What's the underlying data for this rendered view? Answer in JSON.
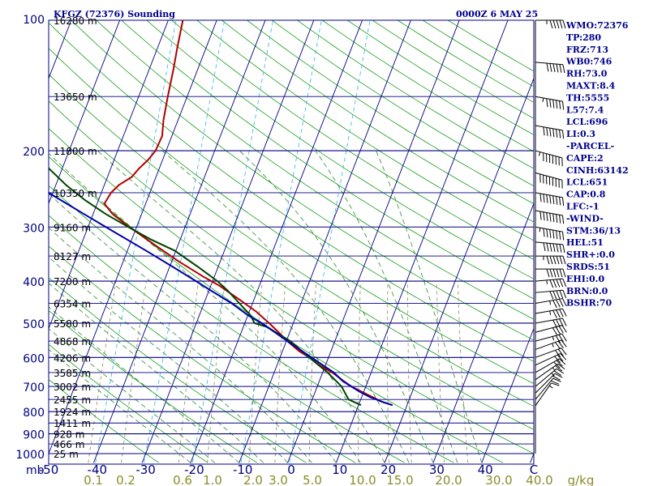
{
  "header": {
    "station": "KFGZ (72376) Sounding",
    "time": "0000Z  6 MAY 25"
  },
  "colors": {
    "isobar": "#000080",
    "isotherm": "#000080",
    "dry_adiabat": "#1a9f1a",
    "moist_adiabat": "#2f8a2f",
    "mixing_ratio": "#8b8b5a",
    "temperature": "#b00000",
    "dewpoint": "#004400",
    "parcel": "#0000aa",
    "ice_line": "#29b6e6",
    "axis_text": "#000080",
    "mixing_text": "#8b8b2a"
  },
  "chart_data": {
    "type": "line",
    "title": "KFGZ (72376) Sounding",
    "diagram": "skew-T log-P",
    "pressure_levels": [
      100,
      200,
      300,
      400,
      500,
      600,
      700,
      800,
      900,
      1000
    ],
    "pressure_tick_labels": [
      "100",
      "200",
      "300",
      "400",
      "500",
      "600",
      "700",
      "800",
      "900",
      "1000"
    ],
    "height_labels": [
      {
        "p": 100,
        "text": "16280 m"
      },
      {
        "p": 150,
        "text": "13650 m"
      },
      {
        "p": 200,
        "text": "11800 m"
      },
      {
        "p": 250,
        "text": "10350 m"
      },
      {
        "p": 300,
        "text": "9160 m"
      },
      {
        "p": 350,
        "text": "8127 m"
      },
      {
        "p": 400,
        "text": "7200 m"
      },
      {
        "p": 450,
        "text": "6354 m"
      },
      {
        "p": 500,
        "text": "5580 m"
      },
      {
        "p": 550,
        "text": "4868 m"
      },
      {
        "p": 600,
        "text": "4206 m"
      },
      {
        "p": 650,
        "text": "3585 m"
      },
      {
        "p": 700,
        "text": "3002 m"
      },
      {
        "p": 750,
        "text": "2455 m"
      },
      {
        "p": 800,
        "text": "1924 m"
      },
      {
        "p": 850,
        "text": "1411 m"
      },
      {
        "p": 900,
        "text": "928 m"
      },
      {
        "p": 950,
        "text": "466 m"
      },
      {
        "p": 1000,
        "text": "25 m"
      }
    ],
    "ylim": [
      100,
      1000
    ],
    "xlim_temperature_c": [
      -50,
      50
    ],
    "temperature_tick_labels": [
      "-50",
      "-40",
      "-30",
      "-20",
      "-10",
      "0",
      "10",
      "20",
      "30",
      "40",
      "C"
    ],
    "y_axis_unit_label": "mb",
    "mixing_ratio_labels": [
      "0.1",
      "0.2",
      "0.6",
      "1.0",
      "2.0",
      "3.0",
      "5.0",
      "10.0",
      "15.0",
      "20.0",
      "30.0",
      "40.0",
      "g/kg"
    ],
    "mixing_ratio_values": [
      0.1,
      0.2,
      0.6,
      1,
      2,
      3,
      5,
      10,
      15,
      20,
      30,
      40
    ],
    "series": [
      {
        "key": "temperature",
        "pressure": [
          773,
          760,
          720,
          700,
          680,
          650,
          630,
          600,
          580,
          550,
          520,
          500,
          470,
          440,
          410,
          390,
          360,
          330,
          300,
          280,
          265,
          250,
          240,
          230,
          220,
          210,
          200,
          185,
          170,
          150,
          130,
          115,
          100
        ],
        "temp_c": [
          17,
          14.6,
          9.6,
          7,
          5,
          2,
          -0.7,
          -4,
          -6.6,
          -9.8,
          -12.8,
          -15,
          -18.6,
          -23.2,
          -28.2,
          -32.4,
          -38.6,
          -44.8,
          -51.5,
          -56,
          -58.5,
          -58,
          -57,
          -55,
          -54.2,
          -53,
          -52.2,
          -52,
          -53,
          -54,
          -55,
          -56,
          -57
        ]
      },
      {
        "key": "dewpoint",
        "pressure": [
          773,
          750,
          700,
          650,
          600,
          550,
          510,
          500,
          480,
          450,
          420,
          400,
          370,
          340,
          320,
          300,
          280,
          260,
          240,
          220,
          205,
          200,
          180,
          150,
          130,
          100
        ],
        "temp_c": [
          10.5,
          7.5,
          5,
          1,
          -4,
          -9.2,
          -15.2,
          -18,
          -19.4,
          -22.7,
          -26.2,
          -29,
          -34.3,
          -40.3,
          -46.2,
          -51.7,
          -57.4,
          -62.8,
          -67.9,
          -72.7,
          -75.5,
          -76.8,
          -82.5,
          -91.5,
          -98.3,
          -110
        ]
      },
      {
        "key": "parcel",
        "pressure": [
          773,
          760,
          740,
          720,
          700,
          680,
          650,
          630,
          600,
          570,
          540,
          510,
          500,
          480,
          450,
          420,
          400,
          370,
          340,
          310,
          280,
          250,
          220,
          200,
          180,
          160,
          140,
          120,
          100
        ],
        "temp_c": [
          17,
          14.7,
          11.6,
          9.2,
          7,
          4.8,
          2.3,
          0,
          -3.5,
          -7.2,
          -11.1,
          -15.1,
          -16.6,
          -19.9,
          -24.3,
          -29.7,
          -33.4,
          -39.5,
          -46.2,
          -53.7,
          -61.9,
          -70.9,
          -80.8,
          -87.8,
          -95.6,
          -103.6,
          -111.6,
          -119.8,
          -128
        ]
      }
    ]
  },
  "indices": [
    "WMO:72376",
    "TP:280",
    "FRZ:713",
    "WB0:746",
    "RH:73.0",
    "MAXT:8.4",
    "TH:5555",
    "L57:7.4",
    "LCL:696",
    "LI:0.3",
    "-PARCEL-",
    "CAPE:2",
    "CINH:63142",
    "LCL:651",
    "CAP:0.8",
    "LFC:-1",
    "-WIND-",
    "STM:36/13",
    "HEL:51",
    "SHR+:0.0",
    "SRDS:51",
    "EHI:0.0",
    "BRN:0.0",
    "BSHR:70"
  ],
  "wind_barbs": {
    "pressure": [
      100,
      125,
      150,
      175,
      200,
      225,
      250,
      275,
      300,
      325,
      350,
      375,
      400,
      425,
      450,
      475,
      500,
      525,
      550,
      575,
      600,
      625,
      650,
      675,
      700,
      725,
      750,
      775
    ],
    "direction_deg": [
      270,
      275,
      280,
      280,
      285,
      285,
      280,
      280,
      280,
      275,
      270,
      270,
      265,
      265,
      260,
      260,
      260,
      255,
      255,
      250,
      250,
      245,
      240,
      235,
      230,
      225,
      220,
      215
    ],
    "speed_kt": [
      55,
      60,
      65,
      70,
      75,
      80,
      80,
      80,
      75,
      70,
      65,
      60,
      55,
      50,
      45,
      45,
      40,
      40,
      35,
      35,
      30,
      30,
      30,
      25,
      25,
      20,
      20,
      15
    ]
  }
}
